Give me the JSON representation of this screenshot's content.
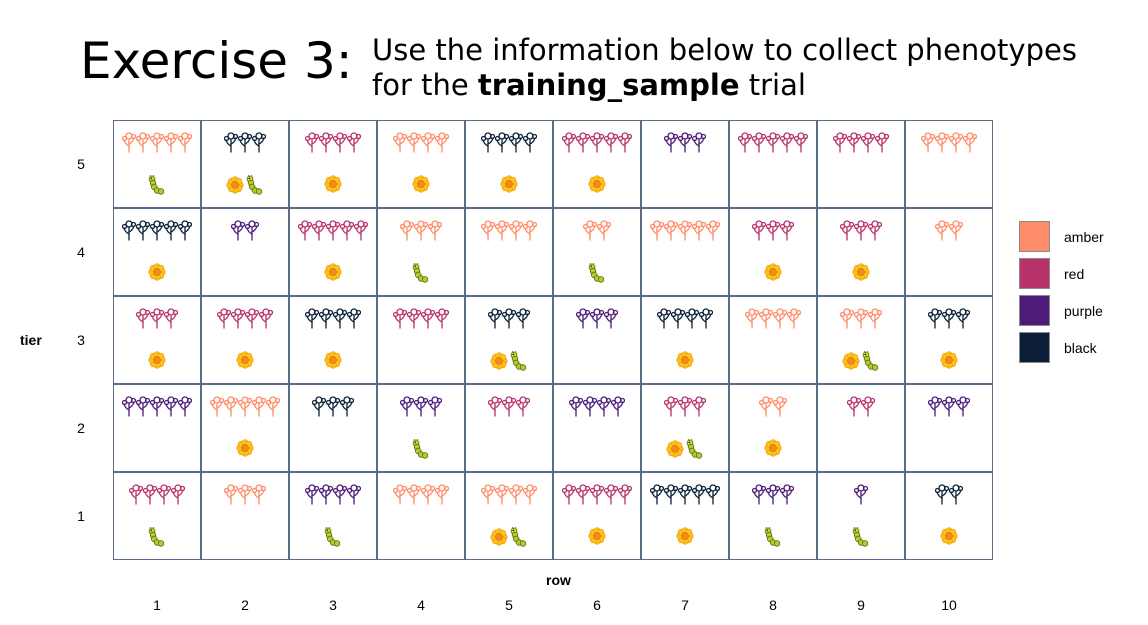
{
  "exercise_title": "Exercise 3:",
  "instructions": {
    "line1": "Use the information below to collect phenotypes",
    "line2_prefix": "for the ",
    "trial_name": "training_sample",
    "line2_suffix": " trial"
  },
  "axes": {
    "y_label": "tier",
    "x_label": "row",
    "tiers": [
      "5",
      "4",
      "3",
      "2",
      "1"
    ],
    "rows": [
      "1",
      "2",
      "3",
      "4",
      "5",
      "6",
      "7",
      "8",
      "9",
      "10"
    ]
  },
  "legend": [
    {
      "label": "amber",
      "color": "#ff8c69"
    },
    {
      "label": "red",
      "color": "#b8336a"
    },
    {
      "label": "purple",
      "color": "#4f1b7a"
    },
    {
      "label": "black",
      "color": "#0b1f38"
    }
  ],
  "icons": {
    "flower": "flower-icon",
    "caterpillar": "caterpillar-icon",
    "plant": "plant-icon"
  },
  "plots": [
    {
      "tier": 5,
      "row": 1,
      "color": "amber",
      "plants": 5,
      "flower": false,
      "caterpillar": true
    },
    {
      "tier": 5,
      "row": 2,
      "color": "black",
      "plants": 3,
      "flower": true,
      "caterpillar": true
    },
    {
      "tier": 5,
      "row": 3,
      "color": "red",
      "plants": 4,
      "flower": true,
      "caterpillar": false
    },
    {
      "tier": 5,
      "row": 4,
      "color": "amber",
      "plants": 4,
      "flower": true,
      "caterpillar": false
    },
    {
      "tier": 5,
      "row": 5,
      "color": "black",
      "plants": 4,
      "flower": true,
      "caterpillar": false
    },
    {
      "tier": 5,
      "row": 6,
      "color": "red",
      "plants": 5,
      "flower": true,
      "caterpillar": false
    },
    {
      "tier": 5,
      "row": 7,
      "color": "purple",
      "plants": 3,
      "flower": false,
      "caterpillar": false
    },
    {
      "tier": 5,
      "row": 8,
      "color": "red",
      "plants": 5,
      "flower": false,
      "caterpillar": false
    },
    {
      "tier": 5,
      "row": 9,
      "color": "red",
      "plants": 4,
      "flower": false,
      "caterpillar": false
    },
    {
      "tier": 5,
      "row": 10,
      "color": "amber",
      "plants": 4,
      "flower": false,
      "caterpillar": false
    },
    {
      "tier": 4,
      "row": 1,
      "color": "black",
      "plants": 5,
      "flower": true,
      "caterpillar": false
    },
    {
      "tier": 4,
      "row": 2,
      "color": "purple",
      "plants": 2,
      "flower": false,
      "caterpillar": false
    },
    {
      "tier": 4,
      "row": 3,
      "color": "red",
      "plants": 5,
      "flower": true,
      "caterpillar": false
    },
    {
      "tier": 4,
      "row": 4,
      "color": "amber",
      "plants": 3,
      "flower": false,
      "caterpillar": true
    },
    {
      "tier": 4,
      "row": 5,
      "color": "amber",
      "plants": 4,
      "flower": false,
      "caterpillar": false
    },
    {
      "tier": 4,
      "row": 6,
      "color": "amber",
      "plants": 2,
      "flower": false,
      "caterpillar": true
    },
    {
      "tier": 4,
      "row": 7,
      "color": "amber",
      "plants": 5,
      "flower": false,
      "caterpillar": false
    },
    {
      "tier": 4,
      "row": 8,
      "color": "red",
      "plants": 3,
      "flower": true,
      "caterpillar": false
    },
    {
      "tier": 4,
      "row": 9,
      "color": "red",
      "plants": 3,
      "flower": true,
      "caterpillar": false
    },
    {
      "tier": 4,
      "row": 10,
      "color": "amber",
      "plants": 2,
      "flower": false,
      "caterpillar": false
    },
    {
      "tier": 3,
      "row": 1,
      "color": "red",
      "plants": 3,
      "flower": true,
      "caterpillar": false
    },
    {
      "tier": 3,
      "row": 2,
      "color": "red",
      "plants": 4,
      "flower": true,
      "caterpillar": false
    },
    {
      "tier": 3,
      "row": 3,
      "color": "black",
      "plants": 4,
      "flower": true,
      "caterpillar": false
    },
    {
      "tier": 3,
      "row": 4,
      "color": "red",
      "plants": 4,
      "flower": false,
      "caterpillar": false
    },
    {
      "tier": 3,
      "row": 5,
      "color": "black",
      "plants": 3,
      "flower": true,
      "caterpillar": true
    },
    {
      "tier": 3,
      "row": 6,
      "color": "purple",
      "plants": 3,
      "flower": false,
      "caterpillar": false
    },
    {
      "tier": 3,
      "row": 7,
      "color": "black",
      "plants": 4,
      "flower": true,
      "caterpillar": false
    },
    {
      "tier": 3,
      "row": 8,
      "color": "amber",
      "plants": 4,
      "flower": false,
      "caterpillar": false
    },
    {
      "tier": 3,
      "row": 9,
      "color": "amber",
      "plants": 3,
      "flower": true,
      "caterpillar": true
    },
    {
      "tier": 3,
      "row": 10,
      "color": "black",
      "plants": 3,
      "flower": true,
      "caterpillar": false
    },
    {
      "tier": 2,
      "row": 1,
      "color": "purple",
      "plants": 5,
      "flower": false,
      "caterpillar": false
    },
    {
      "tier": 2,
      "row": 2,
      "color": "amber",
      "plants": 5,
      "flower": true,
      "caterpillar": false
    },
    {
      "tier": 2,
      "row": 3,
      "color": "black",
      "plants": 3,
      "flower": false,
      "caterpillar": false
    },
    {
      "tier": 2,
      "row": 4,
      "color": "purple",
      "plants": 3,
      "flower": false,
      "caterpillar": true
    },
    {
      "tier": 2,
      "row": 5,
      "color": "red",
      "plants": 3,
      "flower": false,
      "caterpillar": false
    },
    {
      "tier": 2,
      "row": 6,
      "color": "purple",
      "plants": 4,
      "flower": false,
      "caterpillar": false
    },
    {
      "tier": 2,
      "row": 7,
      "color": "red",
      "plants": 3,
      "flower": true,
      "caterpillar": true
    },
    {
      "tier": 2,
      "row": 8,
      "color": "amber",
      "plants": 2,
      "flower": true,
      "caterpillar": false
    },
    {
      "tier": 2,
      "row": 9,
      "color": "red",
      "plants": 2,
      "flower": false,
      "caterpillar": false
    },
    {
      "tier": 2,
      "row": 10,
      "color": "purple",
      "plants": 3,
      "flower": false,
      "caterpillar": false
    },
    {
      "tier": 1,
      "row": 1,
      "color": "red",
      "plants": 4,
      "flower": false,
      "caterpillar": true
    },
    {
      "tier": 1,
      "row": 2,
      "color": "amber",
      "plants": 3,
      "flower": false,
      "caterpillar": false
    },
    {
      "tier": 1,
      "row": 3,
      "color": "purple",
      "plants": 4,
      "flower": false,
      "caterpillar": true
    },
    {
      "tier": 1,
      "row": 4,
      "color": "amber",
      "plants": 4,
      "flower": false,
      "caterpillar": false
    },
    {
      "tier": 1,
      "row": 5,
      "color": "amber",
      "plants": 4,
      "flower": true,
      "caterpillar": true
    },
    {
      "tier": 1,
      "row": 6,
      "color": "red",
      "plants": 5,
      "flower": true,
      "caterpillar": false
    },
    {
      "tier": 1,
      "row": 7,
      "color": "black",
      "plants": 5,
      "flower": true,
      "caterpillar": false
    },
    {
      "tier": 1,
      "row": 8,
      "color": "purple",
      "plants": 3,
      "flower": false,
      "caterpillar": true
    },
    {
      "tier": 1,
      "row": 9,
      "color": "purple",
      "plants": 1,
      "flower": false,
      "caterpillar": true
    },
    {
      "tier": 1,
      "row": 10,
      "color": "black",
      "plants": 2,
      "flower": true,
      "caterpillar": false
    }
  ]
}
